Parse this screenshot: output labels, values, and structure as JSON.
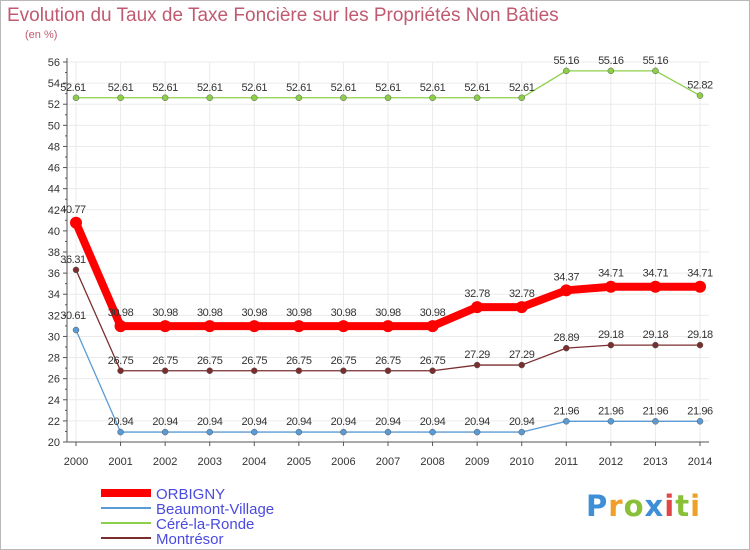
{
  "title": "Evolution du Taux de Taxe Foncière sur les Propriétés Non Bâties",
  "unit_label": "(en %)",
  "logo": {
    "letters": [
      "P",
      "r",
      "o",
      "x",
      "i",
      "t",
      "i"
    ],
    "text": "Proxiti"
  },
  "colors": {
    "title": "#c05a70",
    "grid": "#ebebeb",
    "axis": "#555555",
    "tick_labels": "#333333",
    "value_labels": "#333333",
    "legend_text": "#4a4ae0"
  },
  "chart_data": {
    "type": "line",
    "title": "Evolution du Taux de Taxe Foncière sur les Propriétés Non Bâties",
    "xlabel": "",
    "ylabel": "(en %)",
    "x": [
      "2000",
      "2001",
      "2002",
      "2003",
      "2004",
      "2005",
      "2006",
      "2007",
      "2008",
      "2009",
      "2010",
      "2011",
      "2012",
      "2013",
      "2014"
    ],
    "ylim": [
      20,
      56
    ],
    "yticks": [
      20,
      22,
      24,
      26,
      28,
      30,
      32,
      34,
      36,
      38,
      40,
      42,
      44,
      46,
      48,
      50,
      52,
      54,
      56
    ],
    "grid": true,
    "legend_position": "bottom-left",
    "series": [
      {
        "name": "ORBIGNY",
        "color": "#ff0000",
        "width": 8,
        "marker_radius": 6,
        "values": [
          40.77,
          30.98,
          30.98,
          30.98,
          30.98,
          30.98,
          30.98,
          30.98,
          30.98,
          32.78,
          32.78,
          34.37,
          34.71,
          34.71,
          34.71
        ],
        "labels": [
          "40.77",
          "30.98",
          "30.98",
          "30.98",
          "30.98",
          "30.98",
          "30.98",
          "30.98",
          "30.98",
          "32.78",
          "32.78",
          "34.37",
          "34.71",
          "34.71",
          "34.71"
        ]
      },
      {
        "name": "Beaumont-Village",
        "color": "#5b9bd5",
        "width": 1.3,
        "marker_radius": 3,
        "values": [
          30.61,
          20.94,
          20.94,
          20.94,
          20.94,
          20.94,
          20.94,
          20.94,
          20.94,
          20.94,
          20.94,
          21.96,
          21.96,
          21.96,
          21.96
        ],
        "labels": [
          "30.61",
          "20.94",
          "20.94",
          "20.94",
          "20.94",
          "20.94",
          "20.94",
          "20.94",
          "20.94",
          "20.94",
          "20.94",
          "21.96",
          "21.96",
          "21.96",
          "21.96"
        ]
      },
      {
        "name": "Céré-la-Ronde",
        "color": "#8cd04a",
        "width": 1.3,
        "marker_radius": 3,
        "values": [
          52.61,
          52.61,
          52.61,
          52.61,
          52.61,
          52.61,
          52.61,
          52.61,
          52.61,
          52.61,
          52.61,
          55.16,
          55.16,
          55.16,
          52.82
        ],
        "labels": [
          "52.61",
          "52.61",
          "52.61",
          "52.61",
          "52.61",
          "52.61",
          "52.61",
          "52.61",
          "52.61",
          "52.61",
          "52.61",
          "55.16",
          "55.16",
          "55.16",
          "52.82"
        ]
      },
      {
        "name": "Montrésor",
        "color": "#7b2e2e",
        "width": 1.3,
        "marker_radius": 3,
        "values": [
          36.31,
          26.75,
          26.75,
          26.75,
          26.75,
          26.75,
          26.75,
          26.75,
          26.75,
          27.29,
          27.29,
          28.89,
          29.18,
          29.18,
          29.18
        ],
        "labels": [
          "36.31",
          "26.75",
          "26.75",
          "26.75",
          "26.75",
          "26.75",
          "26.75",
          "26.75",
          "26.75",
          "27.29",
          "27.29",
          "28.89",
          "29.18",
          "29.18",
          "29.18"
        ]
      }
    ]
  }
}
